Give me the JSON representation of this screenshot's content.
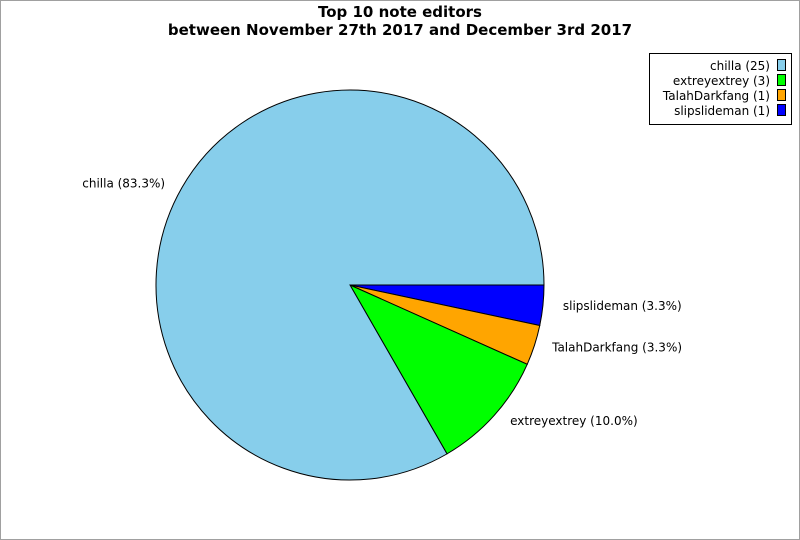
{
  "chart_data": {
    "type": "pie",
    "title": "Top 10 note editors",
    "subtitle": "between November 27th 2017 and December 3rd 2017",
    "slices": [
      {
        "name": "chilla",
        "value": 25,
        "color": "#87ceeb",
        "label": "chilla (83.3%)",
        "legend": "chilla (25)"
      },
      {
        "name": "extreyextrey",
        "value": 3,
        "color": "#00ff00",
        "label": "extreyextrey (10.0%)",
        "legend": "extreyextrey (3)"
      },
      {
        "name": "TalahDarkfang",
        "value": 1,
        "color": "#ffa500",
        "label": "TalahDarkfang (3.3%)",
        "legend": "TalahDarkfang (1)"
      },
      {
        "name": "slipslideman",
        "value": 1,
        "color": "#0000ff",
        "label": "slipslideman (3.3%)",
        "legend": "slipslideman (1)"
      }
    ],
    "legend_position": "top-right",
    "start_direction": "east",
    "slice_order": "clockwise-from-east-reversed"
  }
}
